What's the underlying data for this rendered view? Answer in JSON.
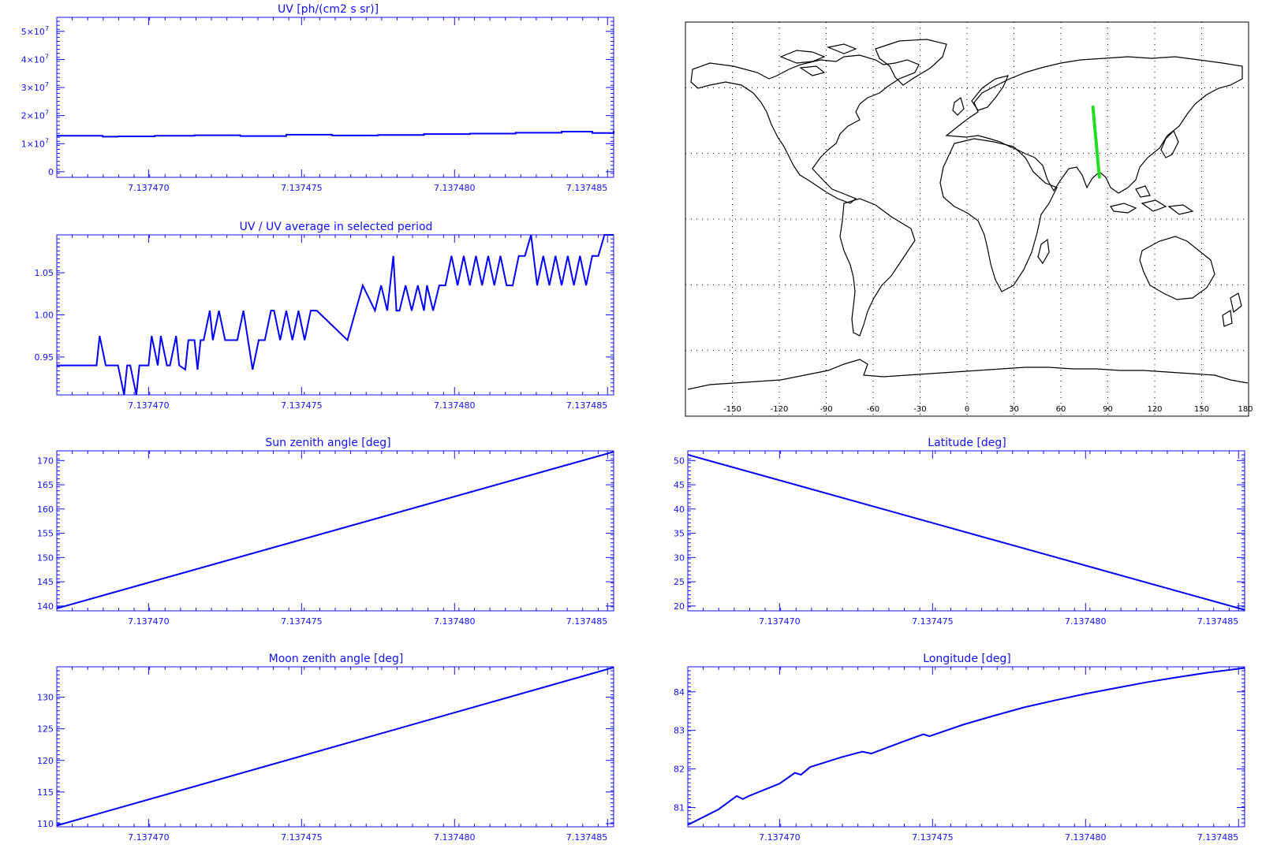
{
  "colors": {
    "axis": "#1010ff",
    "series": "#0000ff",
    "track": "#22dd22",
    "coast": "#000000"
  },
  "chart_data": [
    {
      "id": "uv",
      "type": "line",
      "title": "UV [ph/(cm2 s sr)]",
      "xlabel": "",
      "ylabel": "",
      "xlim": [
        7.137467,
        7.1374852
      ],
      "ylim": [
        -2000000,
        55000000
      ],
      "x_ticks": [
        7.13747,
        7.137475,
        7.13748,
        7.137485
      ],
      "x_tick_labels": [
        "7.137470",
        "7.137475",
        "7.137480",
        "7.137485"
      ],
      "y_ticks": [
        0,
        10000000,
        20000000,
        30000000,
        40000000,
        50000000
      ],
      "y_tick_labels": [
        {
          "m": "0",
          "e": ""
        },
        {
          "m": "1×10",
          "e": "7"
        },
        {
          "m": "2×10",
          "e": "7"
        },
        {
          "m": "3×10",
          "e": "7"
        },
        {
          "m": "4×10",
          "e": "7"
        },
        {
          "m": "5×10",
          "e": "7"
        }
      ],
      "step": true,
      "series": [
        {
          "x": [
            7.137467,
            7.1374685,
            7.137469,
            7.1374702,
            7.1374715,
            7.137473,
            7.1374745,
            7.137476,
            7.1374775,
            7.137479,
            7.1374805,
            7.137482,
            7.1374835,
            7.1374845,
            7.1374852
          ],
          "y": [
            12800000,
            12500000,
            12600000,
            12800000,
            13000000,
            12700000,
            13200000,
            12900000,
            13100000,
            13400000,
            13600000,
            13900000,
            14300000,
            13800000,
            14500000
          ]
        }
      ]
    },
    {
      "id": "ratio",
      "type": "line",
      "title": "UV / UV average in selected period",
      "xlabel": "",
      "ylabel": "",
      "xlim": [
        7.137467,
        7.1374852
      ],
      "ylim": [
        0.905,
        1.095
      ],
      "x_ticks": [
        7.13747,
        7.137475,
        7.13748,
        7.137485
      ],
      "x_tick_labels": [
        "7.137470",
        "7.137475",
        "7.137480",
        "7.137485"
      ],
      "y_ticks": [
        0.95,
        1.0,
        1.05
      ],
      "y_tick_labels": [
        {
          "m": "0.95",
          "e": ""
        },
        {
          "m": "1.00",
          "e": ""
        },
        {
          "m": "1.05",
          "e": ""
        }
      ],
      "series": [
        {
          "x": [
            7.137467,
            7.1374683,
            7.1374684,
            7.1374686,
            7.1374688,
            7.137469,
            7.1374692,
            7.1374693,
            7.1374694,
            7.1374696,
            7.1374697,
            7.1374698,
            7.13747,
            7.1374701,
            7.1374703,
            7.1374704,
            7.1374706,
            7.1374707,
            7.1374709,
            7.137471,
            7.1374712,
            7.1374713,
            7.1374715,
            7.1374716,
            7.1374717,
            7.1374718,
            7.137472,
            7.1374721,
            7.1374723,
            7.1374725,
            7.1374726,
            7.1374727,
            7.1374729,
            7.1374731,
            7.1374734,
            7.1374736,
            7.1374738,
            7.137474,
            7.1374741,
            7.1374743,
            7.1374745,
            7.1374747,
            7.1374749,
            7.1374751,
            7.1374753,
            7.1374755,
            7.1374765,
            7.137477,
            7.1374774,
            7.1374776,
            7.1374778,
            7.137478,
            7.1374781,
            7.1374782,
            7.1374784,
            7.1374786,
            7.1374788,
            7.137479,
            7.1374791,
            7.1374793,
            7.1374795,
            7.1374797,
            7.1374799,
            7.1374801,
            7.1374803,
            7.1374805,
            7.1374807,
            7.1374809,
            7.1374811,
            7.1374813,
            7.1374815,
            7.1374817,
            7.1374819,
            7.1374821,
            7.1374823,
            7.1374825,
            7.1374827,
            7.1374829,
            7.1374831,
            7.1374833,
            7.1374835,
            7.1374837,
            7.1374839,
            7.1374841,
            7.1374843,
            7.1374845,
            7.1374847,
            7.1374849,
            7.1374851,
            7.1374852
          ],
          "y": [
            0.94,
            0.94,
            0.975,
            0.94,
            0.94,
            0.94,
            0.905,
            0.94,
            0.94,
            0.905,
            0.94,
            0.94,
            0.94,
            0.975,
            0.94,
            0.975,
            0.94,
            0.94,
            0.975,
            0.94,
            0.935,
            0.97,
            0.97,
            0.935,
            0.97,
            0.97,
            1.005,
            0.97,
            1.005,
            0.97,
            0.97,
            0.97,
            0.97,
            1.005,
            0.935,
            0.97,
            0.97,
            1.005,
            1.005,
            0.97,
            1.005,
            0.97,
            1.005,
            0.97,
            1.005,
            1.005,
            0.97,
            1.035,
            1.005,
            1.035,
            1.005,
            1.07,
            1.005,
            1.005,
            1.035,
            1.005,
            1.035,
            1.005,
            1.035,
            1.005,
            1.035,
            1.035,
            1.07,
            1.035,
            1.07,
            1.035,
            1.07,
            1.035,
            1.07,
            1.035,
            1.07,
            1.035,
            1.035,
            1.07,
            1.07,
            1.095,
            1.035,
            1.07,
            1.035,
            1.07,
            1.035,
            1.07,
            1.035,
            1.07,
            1.035,
            1.07,
            1.07,
            1.095,
            1.095,
            1.095
          ]
        }
      ]
    },
    {
      "id": "sza",
      "type": "line",
      "title": "Sun zenith angle [deg]",
      "xlabel": "",
      "ylabel": "",
      "xlim": [
        7.137467,
        7.1374852
      ],
      "ylim": [
        139,
        172
      ],
      "x_ticks": [
        7.13747,
        7.137475,
        7.13748,
        7.137485
      ],
      "x_tick_labels": [
        "7.137470",
        "7.137475",
        "7.137480",
        "7.137485"
      ],
      "y_ticks": [
        140,
        145,
        150,
        155,
        160,
        165,
        170
      ],
      "y_tick_labels": [
        {
          "m": "140",
          "e": ""
        },
        {
          "m": "145",
          "e": ""
        },
        {
          "m": "150",
          "e": ""
        },
        {
          "m": "155",
          "e": ""
        },
        {
          "m": "160",
          "e": ""
        },
        {
          "m": "165",
          "e": ""
        },
        {
          "m": "170",
          "e": ""
        }
      ],
      "series": [
        {
          "x": [
            7.137467,
            7.1374852
          ],
          "y": [
            139.5,
            171.8
          ]
        }
      ]
    },
    {
      "id": "lat",
      "type": "line",
      "title": "Latitude [deg]",
      "xlabel": "",
      "ylabel": "",
      "xlim": [
        7.137467,
        7.1374852
      ],
      "ylim": [
        19,
        52
      ],
      "x_ticks": [
        7.13747,
        7.137475,
        7.13748,
        7.137485
      ],
      "x_tick_labels": [
        "7.137470",
        "7.137475",
        "7.137480",
        "7.137485"
      ],
      "y_ticks": [
        20,
        25,
        30,
        35,
        40,
        45,
        50
      ],
      "y_tick_labels": [
        {
          "m": "20",
          "e": ""
        },
        {
          "m": "25",
          "e": ""
        },
        {
          "m": "30",
          "e": ""
        },
        {
          "m": "35",
          "e": ""
        },
        {
          "m": "40",
          "e": ""
        },
        {
          "m": "45",
          "e": ""
        },
        {
          "m": "50",
          "e": ""
        }
      ],
      "series": [
        {
          "x": [
            7.137467,
            7.1374852
          ],
          "y": [
            51.2,
            19.2
          ]
        }
      ]
    },
    {
      "id": "mza",
      "type": "line",
      "title": "Moon zenith angle [deg]",
      "xlabel": "",
      "ylabel": "",
      "xlim": [
        7.137467,
        7.1374852
      ],
      "ylim": [
        109.5,
        134.8
      ],
      "x_ticks": [
        7.13747,
        7.137475,
        7.13748,
        7.137485
      ],
      "x_tick_labels": [
        "7.137470",
        "7.137475",
        "7.137480",
        "7.137485"
      ],
      "y_ticks": [
        110,
        115,
        120,
        125,
        130
      ],
      "y_tick_labels": [
        {
          "m": "110",
          "e": ""
        },
        {
          "m": "115",
          "e": ""
        },
        {
          "m": "120",
          "e": ""
        },
        {
          "m": "125",
          "e": ""
        },
        {
          "m": "130",
          "e": ""
        }
      ],
      "series": [
        {
          "x": [
            7.137467,
            7.1374852
          ],
          "y": [
            109.7,
            134.7
          ]
        }
      ]
    },
    {
      "id": "lon",
      "type": "line",
      "title": "Longitude [deg]",
      "xlabel": "",
      "ylabel": "",
      "xlim": [
        7.137467,
        7.1374852
      ],
      "ylim": [
        80.5,
        84.65
      ],
      "x_ticks": [
        7.13747,
        7.137475,
        7.13748,
        7.137485
      ],
      "x_tick_labels": [
        "7.137470",
        "7.137475",
        "7.137480",
        "7.137485"
      ],
      "y_ticks": [
        81,
        82,
        83,
        84
      ],
      "y_tick_labels": [
        {
          "m": "81",
          "e": ""
        },
        {
          "m": "82",
          "e": ""
        },
        {
          "m": "83",
          "e": ""
        },
        {
          "m": "84",
          "e": ""
        }
      ],
      "series": [
        {
          "x": [
            7.137467,
            7.137468,
            7.1374686,
            7.1374688,
            7.137469,
            7.13747,
            7.1374705,
            7.1374707,
            7.137471,
            7.137472,
            7.1374727,
            7.137473,
            7.137474,
            7.1374747,
            7.1374749,
            7.137476,
            7.137477,
            7.137478,
            7.137479,
            7.13748,
            7.137481,
            7.137482,
            7.137483,
            7.137484,
            7.1374852
          ],
          "y": [
            80.55,
            80.95,
            81.3,
            81.22,
            81.3,
            81.62,
            81.9,
            81.85,
            82.05,
            82.3,
            82.45,
            82.4,
            82.7,
            82.9,
            82.85,
            83.15,
            83.38,
            83.6,
            83.78,
            83.95,
            84.1,
            84.25,
            84.38,
            84.5,
            84.62
          ]
        }
      ]
    }
  ],
  "map": {
    "lon_ticks": [
      -150,
      -120,
      -90,
      -60,
      -30,
      0,
      30,
      60,
      90,
      120,
      150,
      180
    ],
    "lon_tick_labels": [
      "-150",
      "-120",
      "-90",
      "-60",
      "-30",
      "0",
      "30",
      "60",
      "90",
      "120",
      "150",
      "180"
    ],
    "lat_grid": [
      60,
      30,
      0,
      -30,
      -60
    ],
    "extent": {
      "lon": [
        -180,
        180
      ],
      "lat": [
        -90,
        90
      ]
    },
    "track": {
      "lon": [
        80.5,
        84.6
      ],
      "lat": [
        51.2,
        19.2
      ]
    }
  }
}
